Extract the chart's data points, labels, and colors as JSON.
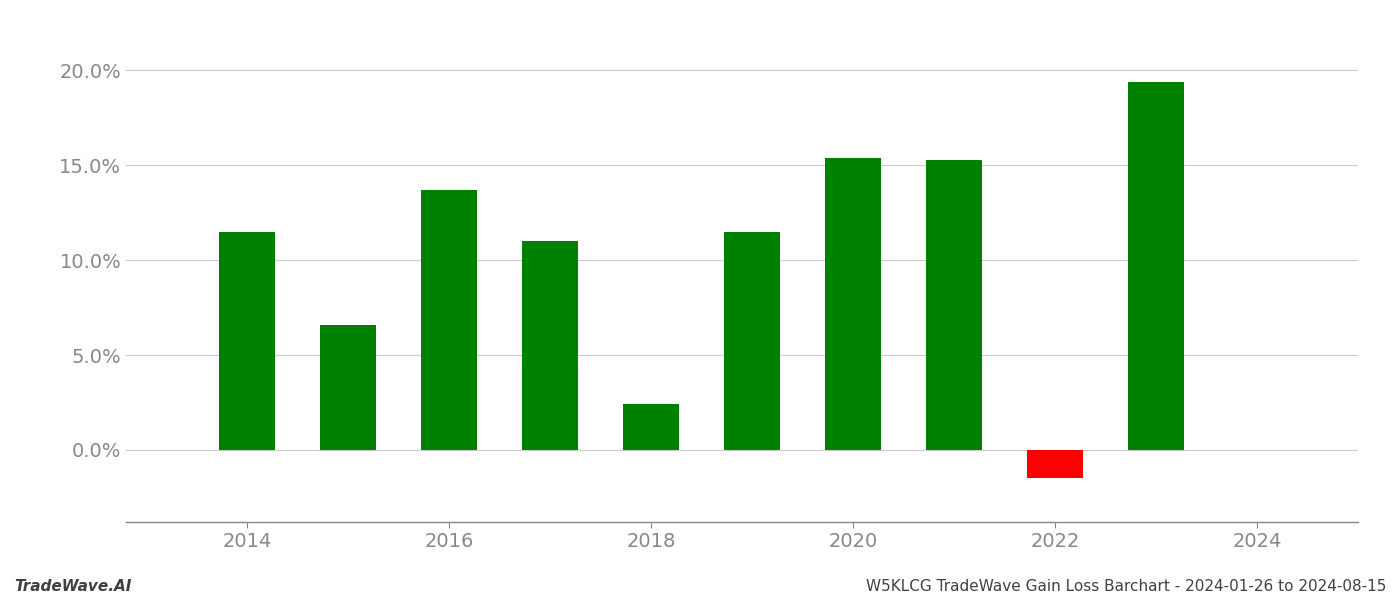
{
  "years": [
    2014,
    2015,
    2016,
    2017,
    2018,
    2019,
    2020,
    2021,
    2022,
    2023
  ],
  "values": [
    0.115,
    0.066,
    0.137,
    0.11,
    0.024,
    0.115,
    0.154,
    0.153,
    -0.015,
    0.194
  ],
  "bar_color_positive": "#008000",
  "bar_color_negative": "#ff0000",
  "ylim_min": -0.038,
  "ylim_max": 0.215,
  "yticks": [
    0.0,
    0.05,
    0.1,
    0.15,
    0.2
  ],
  "background_color": "#ffffff",
  "grid_color": "#cccccc",
  "footer_left": "TradeWave.AI",
  "footer_right": "W5KLCG TradeWave Gain Loss Barchart - 2024-01-26 to 2024-08-15",
  "bar_width": 0.55,
  "axis_label_color": "#888888",
  "spine_color": "#888888",
  "tick_fontsize": 14,
  "footer_fontsize": 11
}
